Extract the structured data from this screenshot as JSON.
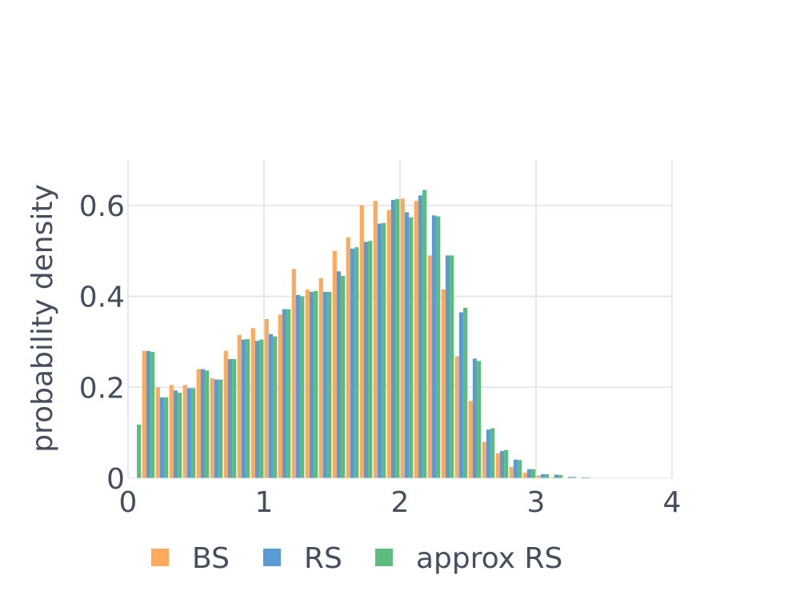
{
  "chart_data": {
    "type": "bar",
    "title": "",
    "xlabel": "",
    "ylabel": "probability density",
    "xlim": [
      0,
      4
    ],
    "ylim": [
      0,
      0.7
    ],
    "x_ticks": [
      0,
      1,
      2,
      3,
      4
    ],
    "y_ticks": [
      0,
      0.2,
      0.4,
      0.6
    ],
    "x_tick_labels": [
      "0",
      "1",
      "2",
      "3",
      "4"
    ],
    "y_tick_labels": [
      "0",
      "0.2",
      "0.4",
      "0.6"
    ],
    "grid": true,
    "legend_position": "bottom-left",
    "bin_width": 0.1,
    "bin_start": 0,
    "series": [
      {
        "name": "BS",
        "color": "#ffa95c",
        "values": [
          0.0,
          0.28,
          0.2,
          0.205,
          0.205,
          0.24,
          0.22,
          0.28,
          0.315,
          0.33,
          0.35,
          0.36,
          0.46,
          0.415,
          0.44,
          0.5,
          0.53,
          0.6,
          0.61,
          0.59,
          0.615,
          0.61,
          0.49,
          0.415,
          0.268,
          0.17,
          0.08,
          0.055,
          0.025,
          0.012,
          0.006,
          0.002,
          0.001,
          0.0,
          0.0,
          0.0,
          0.0,
          0.0,
          0.0,
          0.0
        ]
      },
      {
        "name": "RS",
        "color": "#5b9bd5",
        "values": [
          0.0,
          0.28,
          0.178,
          0.193,
          0.198,
          0.24,
          0.217,
          0.262,
          0.305,
          0.302,
          0.317,
          0.372,
          0.403,
          0.41,
          0.41,
          0.455,
          0.505,
          0.52,
          0.56,
          0.612,
          0.585,
          0.622,
          0.578,
          0.49,
          0.365,
          0.263,
          0.107,
          0.06,
          0.041,
          0.02,
          0.009,
          0.008,
          0.003,
          0.002,
          0.0,
          0.0,
          0.0,
          0.0,
          0.0,
          0.0
        ]
      },
      {
        "name": "approx RS",
        "color": "#5bbd7d",
        "values": [
          0.118,
          0.278,
          0.178,
          0.188,
          0.198,
          0.237,
          0.217,
          0.262,
          0.306,
          0.305,
          0.312,
          0.372,
          0.4,
          0.412,
          0.41,
          0.445,
          0.508,
          0.522,
          0.561,
          0.614,
          0.574,
          0.634,
          0.576,
          0.49,
          0.375,
          0.258,
          0.11,
          0.062,
          0.04,
          0.02,
          0.009,
          0.007,
          0.003,
          0.002,
          0.0,
          0.0,
          0.0,
          0.0,
          0.0,
          0.0
        ]
      }
    ]
  }
}
